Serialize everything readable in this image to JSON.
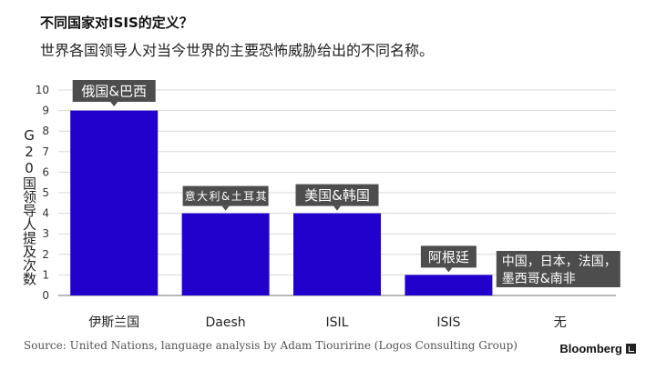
{
  "header": {
    "title": "不同国家对ISIS的定义？",
    "subtitle": "世界各国领导人对当今世界的主要恐怖威胁给出的不同名称。"
  },
  "footer": {
    "source": "Source: United Nations, language analysis by Adam Tiouririne (Logos Consulting Group)",
    "brand": "Bloomberg"
  },
  "chart_data": {
    "type": "bar",
    "title": "不同国家对ISIS的定义？",
    "subtitle": "世界各国领导人对当今世界的主要恐怖威胁给出的不同名称。",
    "xlabel": "",
    "ylabel": "G20国领导人提及次数",
    "categories": [
      "伊斯兰国",
      "Daesh",
      "ISIL",
      "ISIS",
      "无"
    ],
    "values": [
      9,
      4,
      4,
      1,
      0
    ],
    "annotations": [
      "俄国&巴西",
      "意大利&土耳其",
      "美国&韩国",
      "阿根廷",
      "中国，日本，法国，墨西哥&南非"
    ],
    "ylim": [
      0,
      10
    ],
    "yticks": [
      0,
      1,
      2,
      3,
      4,
      5,
      6,
      7,
      8,
      9,
      10
    ],
    "grid": true,
    "bar_color": "#2200cc",
    "annotation_bg": "#4d4d4d",
    "annotation_text_color": "#ffffff"
  }
}
